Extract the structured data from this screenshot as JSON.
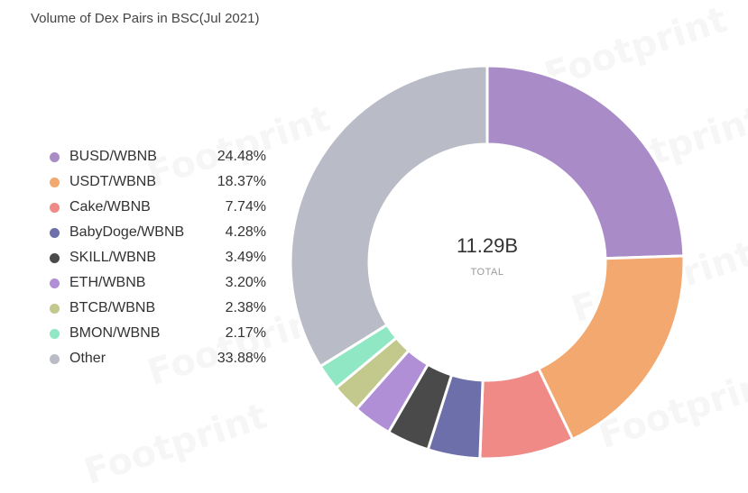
{
  "chart_data": {
    "type": "pie",
    "title": "Volume of Dex Pairs in BSC(Jul 2021)",
    "total_value": "11.29B",
    "total_label": "TOTAL",
    "legend_position": "left",
    "categories": [
      "BUSD/WBNB",
      "USDT/WBNB",
      "Cake/WBNB",
      "BabyDoge/WBNB",
      "SKILL/WBNB",
      "ETH/WBNB",
      "BTCB/WBNB",
      "BMON/WBNB",
      "Other"
    ],
    "values": [
      24.48,
      18.37,
      7.74,
      4.28,
      3.49,
      3.2,
      2.38,
      2.17,
      33.88
    ],
    "value_labels": [
      "24.48%",
      "18.37%",
      "7.74%",
      "4.28%",
      "3.49%",
      "3.20%",
      "2.38%",
      "2.17%",
      "33.88%"
    ],
    "colors": [
      "#a98bc8",
      "#f2a86e",
      "#ef8a87",
      "#6c6fa9",
      "#4a4a4a",
      "#b18fd6",
      "#c3c88d",
      "#8fe7c4",
      "#b9bcc6"
    ]
  }
}
